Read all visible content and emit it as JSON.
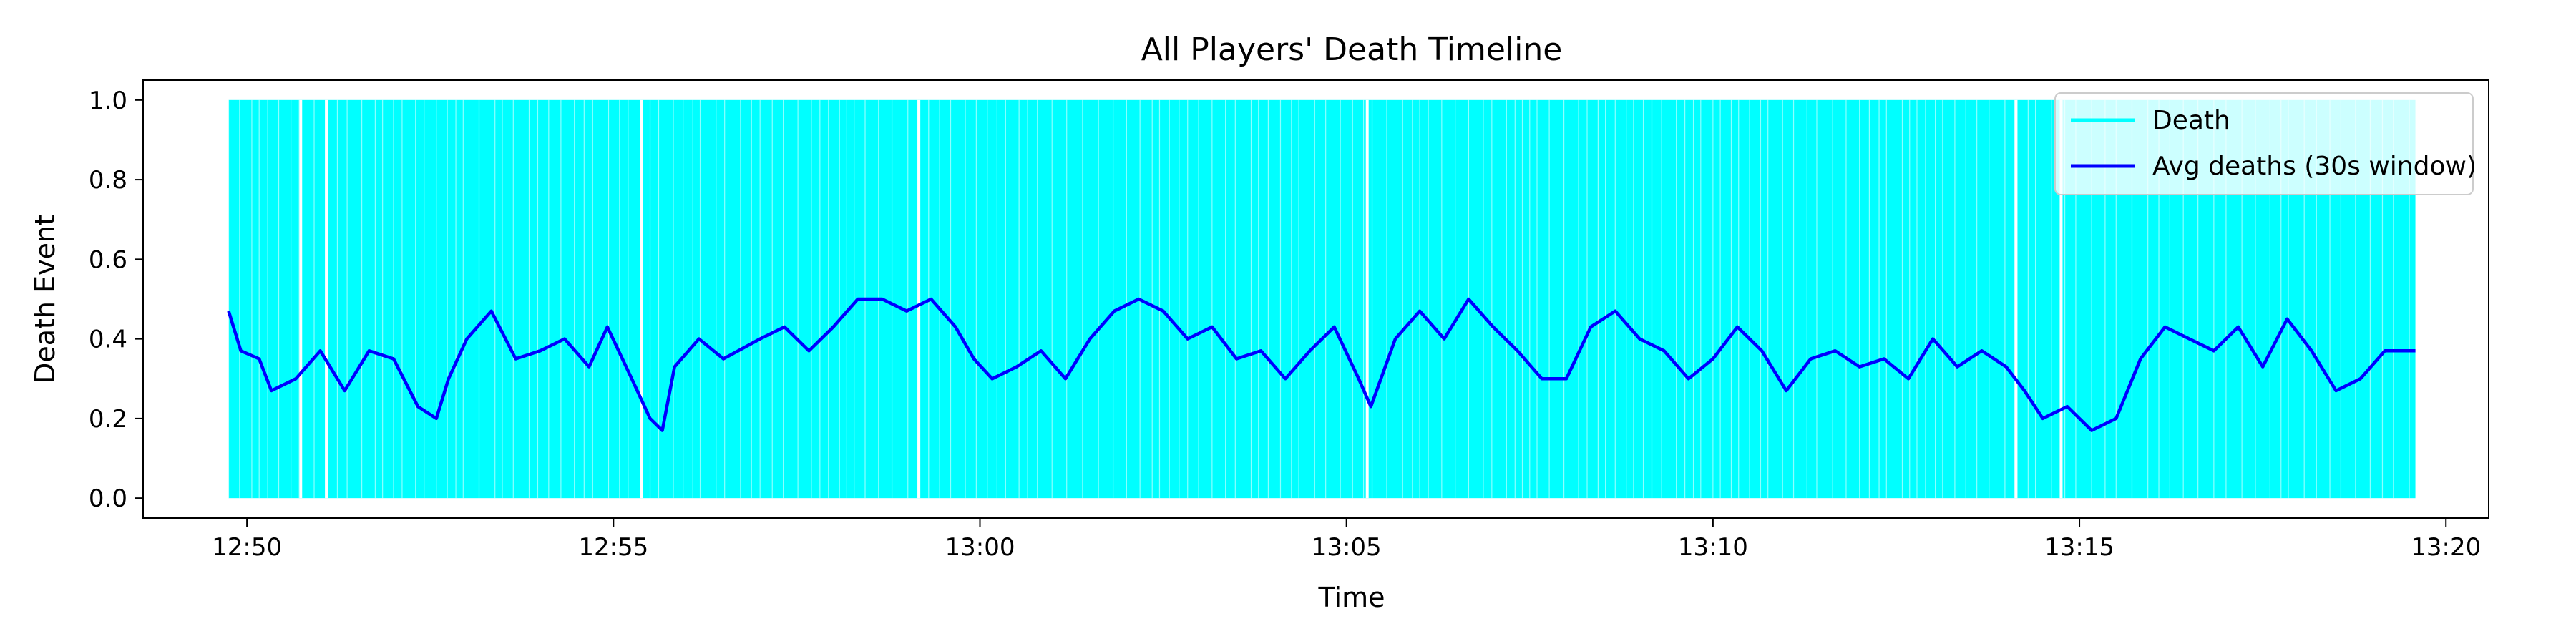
{
  "chart_data": {
    "type": "line",
    "title": "All Players' Death Timeline",
    "xlabel": "Time",
    "ylabel": "Death Event",
    "xlim": [
      "12:48:35",
      "13:20:35"
    ],
    "ylim": [
      -0.05,
      1.05
    ],
    "x_ticks": [
      "12:50",
      "12:55",
      "13:00",
      "13:05",
      "13:10",
      "13:15",
      "13:20"
    ],
    "y_ticks": [
      "0.0",
      "0.2",
      "0.4",
      "0.6",
      "0.8",
      "1.0"
    ],
    "grid": false,
    "legend_position": "top-right",
    "series": [
      {
        "name": "Death",
        "kind": "vertical-lines",
        "color": "#00ffff",
        "y_range": [
          0,
          1
        ],
        "start": "12:49:45",
        "end": "13:19:35",
        "gaps": [
          "12:50:44",
          "12:51:05",
          "12:55:23",
          "12:59:10",
          "13:05:17",
          "13:14:08",
          "13:14:45"
        ]
      },
      {
        "name": "Avg deaths (30s window)",
        "kind": "line",
        "color": "#0000ff",
        "points": [
          [
            "12:49:45",
            0.47
          ],
          [
            "12:49:55",
            0.37
          ],
          [
            "12:50:10",
            0.35
          ],
          [
            "12:50:20",
            0.27
          ],
          [
            "12:50:40",
            0.3
          ],
          [
            "12:51:00",
            0.37
          ],
          [
            "12:51:20",
            0.27
          ],
          [
            "12:51:40",
            0.37
          ],
          [
            "12:52:00",
            0.35
          ],
          [
            "12:52:20",
            0.23
          ],
          [
            "12:52:35",
            0.2
          ],
          [
            "12:52:45",
            0.3
          ],
          [
            "12:53:00",
            0.4
          ],
          [
            "12:53:20",
            0.47
          ],
          [
            "12:53:40",
            0.35
          ],
          [
            "12:54:00",
            0.37
          ],
          [
            "12:54:20",
            0.4
          ],
          [
            "12:54:40",
            0.33
          ],
          [
            "12:54:55",
            0.43
          ],
          [
            "12:55:15",
            0.3
          ],
          [
            "12:55:30",
            0.2
          ],
          [
            "12:55:40",
            0.17
          ],
          [
            "12:55:50",
            0.33
          ],
          [
            "12:56:10",
            0.4
          ],
          [
            "12:56:30",
            0.35
          ],
          [
            "12:57:00",
            0.4
          ],
          [
            "12:57:20",
            0.43
          ],
          [
            "12:57:40",
            0.37
          ],
          [
            "12:58:00",
            0.43
          ],
          [
            "12:58:20",
            0.5
          ],
          [
            "12:58:40",
            0.5
          ],
          [
            "12:59:00",
            0.47
          ],
          [
            "12:59:20",
            0.5
          ],
          [
            "12:59:40",
            0.43
          ],
          [
            "12:59:55",
            0.35
          ],
          [
            "13:00:10",
            0.3
          ],
          [
            "13:00:30",
            0.33
          ],
          [
            "13:00:50",
            0.37
          ],
          [
            "13:01:10",
            0.3
          ],
          [
            "13:01:30",
            0.4
          ],
          [
            "13:01:50",
            0.47
          ],
          [
            "13:02:10",
            0.5
          ],
          [
            "13:02:30",
            0.47
          ],
          [
            "13:02:50",
            0.4
          ],
          [
            "13:03:10",
            0.43
          ],
          [
            "13:03:30",
            0.35
          ],
          [
            "13:03:50",
            0.37
          ],
          [
            "13:04:10",
            0.3
          ],
          [
            "13:04:30",
            0.37
          ],
          [
            "13:04:50",
            0.43
          ],
          [
            "13:05:10",
            0.3
          ],
          [
            "13:05:20",
            0.23
          ],
          [
            "13:05:40",
            0.4
          ],
          [
            "13:06:00",
            0.47
          ],
          [
            "13:06:20",
            0.4
          ],
          [
            "13:06:40",
            0.5
          ],
          [
            "13:07:00",
            0.43
          ],
          [
            "13:07:20",
            0.37
          ],
          [
            "13:07:40",
            0.3
          ],
          [
            "13:08:00",
            0.3
          ],
          [
            "13:08:20",
            0.43
          ],
          [
            "13:08:40",
            0.47
          ],
          [
            "13:09:00",
            0.4
          ],
          [
            "13:09:20",
            0.37
          ],
          [
            "13:09:40",
            0.3
          ],
          [
            "13:10:00",
            0.35
          ],
          [
            "13:10:20",
            0.43
          ],
          [
            "13:10:40",
            0.37
          ],
          [
            "13:11:00",
            0.27
          ],
          [
            "13:11:20",
            0.35
          ],
          [
            "13:11:40",
            0.37
          ],
          [
            "13:12:00",
            0.33
          ],
          [
            "13:12:20",
            0.35
          ],
          [
            "13:12:40",
            0.3
          ],
          [
            "13:13:00",
            0.4
          ],
          [
            "13:13:20",
            0.33
          ],
          [
            "13:13:40",
            0.37
          ],
          [
            "13:14:00",
            0.33
          ],
          [
            "13:14:15",
            0.27
          ],
          [
            "13:14:30",
            0.2
          ],
          [
            "13:14:50",
            0.23
          ],
          [
            "13:15:10",
            0.17
          ],
          [
            "13:15:30",
            0.2
          ],
          [
            "13:15:50",
            0.35
          ],
          [
            "13:16:10",
            0.43
          ],
          [
            "13:16:30",
            0.4
          ],
          [
            "13:16:50",
            0.37
          ],
          [
            "13:17:10",
            0.43
          ],
          [
            "13:17:30",
            0.33
          ],
          [
            "13:17:50",
            0.45
          ],
          [
            "13:18:10",
            0.37
          ],
          [
            "13:18:30",
            0.27
          ],
          [
            "13:18:50",
            0.3
          ],
          [
            "13:19:10",
            0.37
          ],
          [
            "13:19:35",
            0.37
          ]
        ]
      }
    ]
  }
}
